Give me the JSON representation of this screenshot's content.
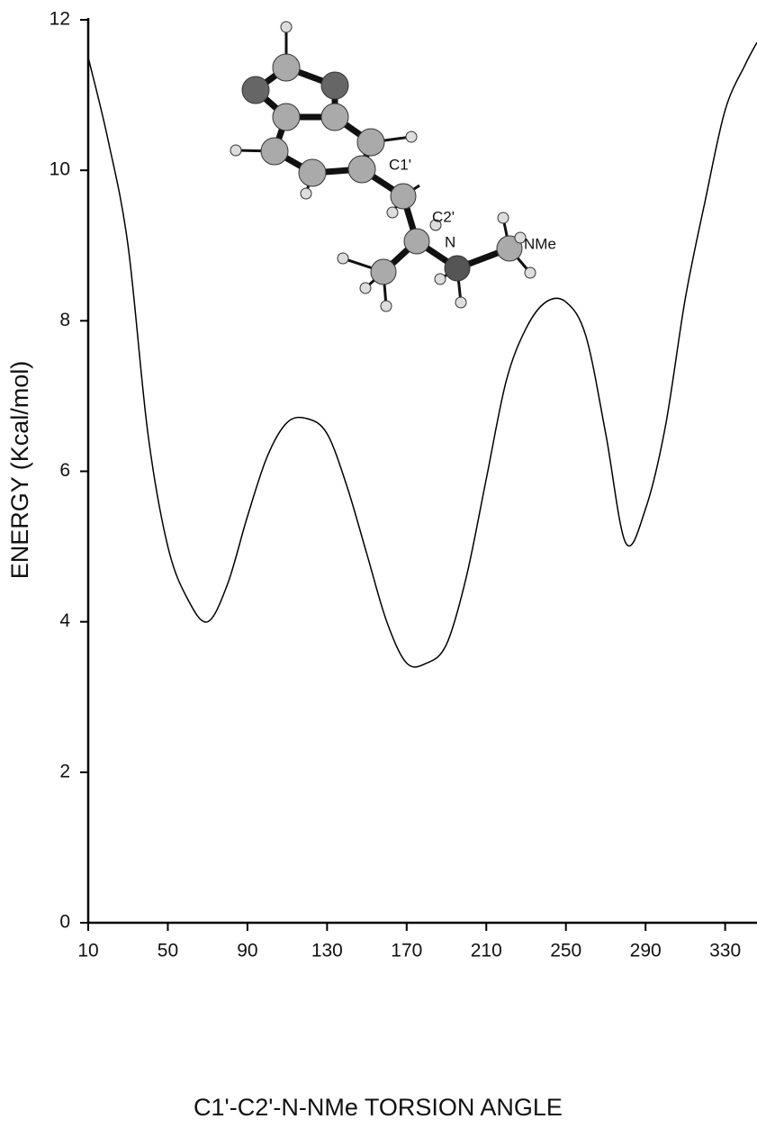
{
  "chart_data": {
    "type": "line",
    "x_label": "C1'-C2'-N-NMe TORSION ANGLE",
    "y_label": "ENERGY (Kcal/mol)",
    "annotations": [
      "C1'",
      "C2'",
      "N",
      "NMe"
    ],
    "series": [
      {
        "color": "#000000",
        "x": [
          10,
          20,
          30,
          40,
          50,
          60,
          70,
          80,
          90,
          100,
          110,
          120,
          130,
          140,
          150,
          160,
          170,
          180,
          190,
          200,
          210,
          220,
          230,
          240,
          250,
          260,
          270,
          280,
          290,
          300,
          310,
          320,
          330,
          340,
          346
        ],
        "values": [
          11.5,
          10.4,
          9.0,
          6.5,
          5.0,
          4.3,
          4.0,
          4.5,
          5.4,
          6.2,
          6.65,
          6.7,
          6.5,
          5.8,
          4.9,
          4.0,
          3.45,
          3.45,
          3.7,
          4.6,
          5.9,
          7.2,
          7.9,
          8.25,
          8.25,
          7.8,
          6.5,
          5.05,
          5.5,
          6.6,
          8.3,
          9.6,
          10.8,
          11.4,
          11.7
        ]
      }
    ],
    "xlim": [
      10,
      346
    ],
    "ylim": [
      0,
      12
    ],
    "xticks": [
      10,
      50,
      90,
      130,
      170,
      210,
      250,
      290,
      330
    ],
    "yticks": [
      0,
      2,
      4,
      6,
      8,
      10,
      12
    ]
  }
}
